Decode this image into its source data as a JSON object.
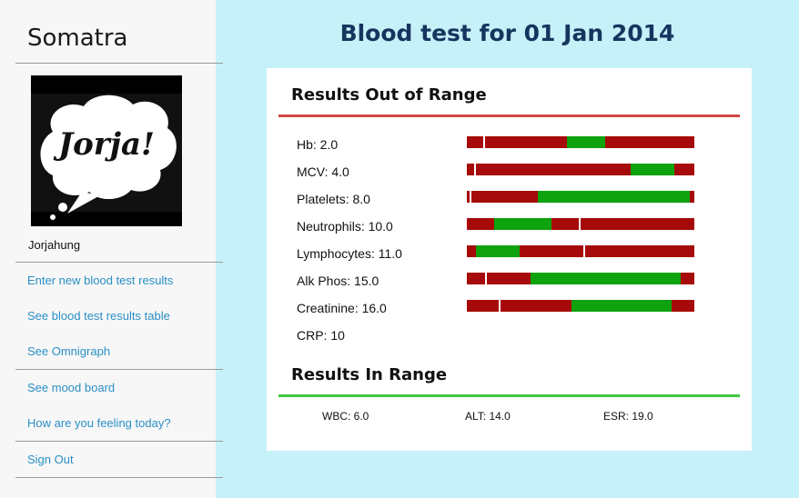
{
  "sidebar": {
    "brand": "Somatra",
    "avatar_text": "Jorja!",
    "username": "Jorjahung",
    "links": [
      "Enter new blood test results",
      "See blood test results table",
      "See Omnigraph",
      "See mood board",
      "How are you feeling today?",
      "Sign Out"
    ]
  },
  "main": {
    "title": "Blood test for 01 Jan 2014",
    "out_of_range": {
      "heading": "Results Out of Range",
      "results": [
        {
          "label": "Hb: 2.0",
          "normal_range": [
            0.44,
            0.61
          ],
          "value_position": 0.07
        },
        {
          "label": "MCV: 4.0",
          "normal_range": [
            0.72,
            0.91
          ],
          "value_position": 0.03
        },
        {
          "label": "Platelets: 8.0",
          "normal_range": [
            0.31,
            0.98
          ],
          "value_position": 0.01
        },
        {
          "label": "Neutrophils: 10.0",
          "normal_range": [
            0.12,
            0.37
          ],
          "value_position": 0.49
        },
        {
          "label": "Lymphocytes: 11.0",
          "normal_range": [
            0.04,
            0.23
          ],
          "value_position": 0.51
        },
        {
          "label": "Alk Phos: 15.0",
          "normal_range": [
            0.28,
            0.94
          ],
          "value_position": 0.08
        },
        {
          "label": "Creatinine: 16.0",
          "normal_range": [
            0.46,
            0.9
          ],
          "value_position": 0.14
        },
        {
          "label": "CRP: 10"
        }
      ]
    },
    "in_range": {
      "heading": "Results In Range",
      "results": [
        "WBC: 6.0",
        "ALT: 14.0",
        "ESR: 19.0"
      ]
    }
  },
  "colors": {
    "page_background": "#c6f1f8",
    "sidebar_background": "#f7f7f7",
    "title": "#16355e",
    "link": "#2a8fc6",
    "out_of_range_bar": "#a70a0a",
    "in_range_bar": "#0ea20e",
    "out_of_range_rule": "#d24a45",
    "in_range_rule": "#3fc63f"
  }
}
